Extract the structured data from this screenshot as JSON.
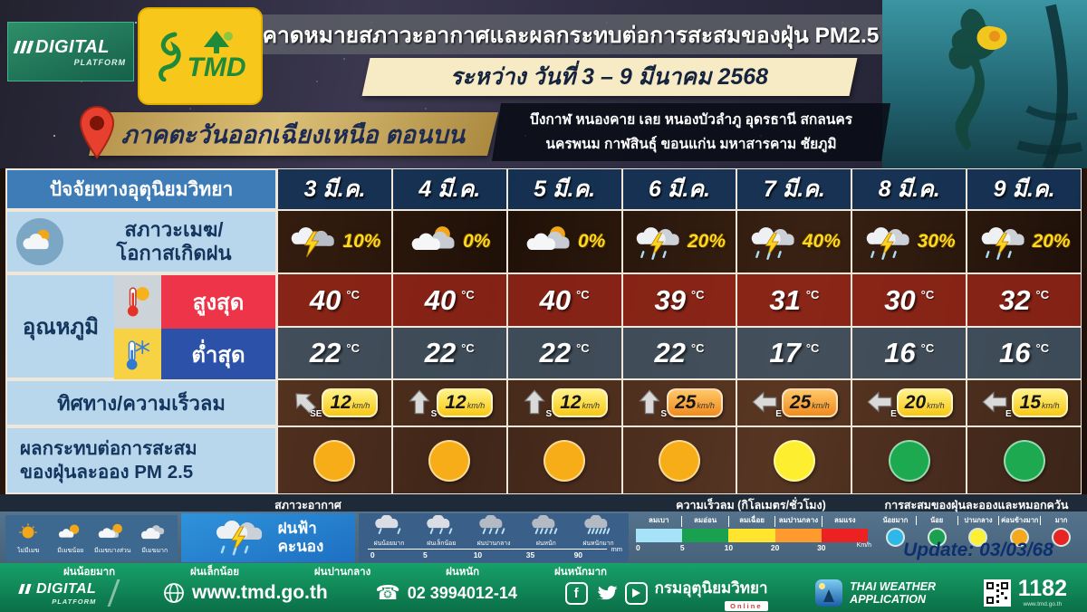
{
  "header": {
    "digital_logo_line1": "DIGITAL",
    "digital_logo_line2": "PLATFORM",
    "tmd_logo_text": "TMD",
    "title": "คาดหมายสภาวะอากาศและผลกระทบต่อการสะสมของฝุ่น PM2.5",
    "date_range": "ระหว่าง วันที่ 3 – 9 มีนาคม 2568"
  },
  "region": {
    "name": "ภาคตะวันออกเฉียงเหนือ ตอนบน",
    "provinces_line1": "บึงกาฬ หนองคาย เลย หนองบัวลำภู อุดรธานี สกลนคร",
    "provinces_line2": "นครพนม กาฬสินธุ์ ขอนแก่น มหาสารคาม  ชัยภูมิ"
  },
  "table": {
    "factor_header": "ปัจจัยทางอุตุนิยมวิทยา",
    "dates": [
      "3 มี.ค.",
      "4 มี.ค.",
      "5 มี.ค.",
      "6 มี.ค.",
      "7 มี.ค.",
      "8 มี.ค.",
      "9 มี.ค."
    ],
    "sky": {
      "label_line1": "สภาวะเมฆ/",
      "label_line2": "โอกาสเกิดฝน",
      "rain_chance": [
        "10%",
        "0%",
        "0%",
        "20%",
        "40%",
        "30%",
        "20%"
      ],
      "icons": [
        "thunder-cloud",
        "sun-cloud",
        "sun-cloud",
        "thunder-rain",
        "thunder-rain",
        "thunder-rain",
        "thunder-rain"
      ]
    },
    "temperature": {
      "group_label": "อุณหภูมิ",
      "max_label": "สูงสุด",
      "min_label": "ต่ำสุด",
      "unit": "°C",
      "max": [
        "40",
        "40",
        "40",
        "39",
        "31",
        "30",
        "32"
      ],
      "min": [
        "22",
        "22",
        "22",
        "22",
        "17",
        "16",
        "16"
      ]
    },
    "wind": {
      "label": "ทิศทาง/ความเร็วลม",
      "unit": "km/h",
      "directions": [
        "SE",
        "S",
        "S",
        "S",
        "E",
        "E",
        "E"
      ],
      "speeds": [
        "12",
        "12",
        "12",
        "25",
        "25",
        "20",
        "15"
      ],
      "badge_colors": [
        "yellow",
        "yellow",
        "yellow",
        "orange",
        "orange",
        "yellow",
        "yellow"
      ]
    },
    "pm": {
      "label_line1": "ผลกระทบต่อการสะสม",
      "label_line2": "ของฝุ่นละออง PM 2.5",
      "levels": [
        "orange",
        "orange",
        "orange",
        "orange",
        "yellow",
        "green",
        "green"
      ]
    }
  },
  "legend_weather": {
    "title": "สภาวะอากาศ",
    "cloud_items": [
      {
        "label": "ไม่มีเมฆ",
        "icon": "clear"
      },
      {
        "label": "มีเมฆน้อย",
        "icon": "few-clouds"
      },
      {
        "label": "มีเมฆบางส่วน",
        "icon": "partly-cloudy"
      },
      {
        "label": "มีเมฆมาก",
        "icon": "cloudy"
      }
    ],
    "thunder_label_line1": "ฝนฟ้า",
    "thunder_label_line2": "คะนอง",
    "rain_items": [
      "ฝนน้อยมาก",
      "ฝนเล็กน้อย",
      "ฝนปานกลาง",
      "ฝนหนัก",
      "ฝนหนักมาก"
    ],
    "rain_scale": [
      "0",
      "5",
      "10",
      "35",
      "90"
    ],
    "rain_unit": "mm"
  },
  "legend_wind": {
    "title": "ความเร็วลม (กิโลเมตร/ชั่วโมง)",
    "items": [
      "ลมเบา",
      "ลมอ่อน",
      "ลมเฉื่อย",
      "ลมปานกลาง",
      "ลมแรง"
    ],
    "colors": [
      "#a6e3f8",
      "#19a14f",
      "#ffe52e",
      "#ff9a2e",
      "#ec2222"
    ],
    "scale": [
      "0",
      "5",
      "10",
      "20",
      "30"
    ],
    "unit": "Km/h"
  },
  "legend_pm": {
    "title": "การสะสมของฝุ่นละอองและหมอกควัน",
    "items": [
      "น้อยมาก",
      "น้อย",
      "ปานกลาง",
      "ค่อนข้างมาก",
      "มาก"
    ],
    "colors": [
      "#2fb7ea",
      "#19a14f",
      "#fdef33",
      "#f5a81e",
      "#e82525"
    ]
  },
  "update_text": "Update: 03/03/68",
  "colors": {
    "pm_levels": {
      "orange": "#f6ad17",
      "yellow": "#fdee2f",
      "green": "#1ca94f"
    }
  },
  "footer": {
    "website": "www.tmd.go.th",
    "phone": "02 3994012-14",
    "department": "กรมอุตุนิยมวิทยา",
    "department_badge": "Online",
    "app_line1": "THAI WEATHER",
    "app_line2": "APPLICATION",
    "hotline": "1182",
    "hotline_sub": "www.tmd.go.th",
    "digital_line1": "DIGITAL",
    "digital_line2": "PLATFORM"
  },
  "chart_data": {
    "type": "table",
    "title": "คาดหมายสภาวะอากาศและผลกระทบต่อการสะสมของฝุ่น PM2.5",
    "subtitle": "ระหว่าง วันที่ 3 – 9 มีนาคม 2568",
    "region": "ภาคตะวันออกเฉียงเหนือ ตอนบน",
    "columns": [
      "3 มี.ค.",
      "4 มี.ค.",
      "5 มี.ค.",
      "6 มี.ค.",
      "7 มี.ค.",
      "8 มี.ค.",
      "9 มี.ค."
    ],
    "rows": [
      {
        "label": "โอกาสเกิดฝน (%)",
        "values": [
          10,
          0,
          0,
          20,
          40,
          30,
          20
        ]
      },
      {
        "label": "อุณหภูมิสูงสุด (°C)",
        "values": [
          40,
          40,
          40,
          39,
          31,
          30,
          32
        ]
      },
      {
        "label": "อุณหภูมิต่ำสุด (°C)",
        "values": [
          22,
          22,
          22,
          22,
          17,
          16,
          16
        ]
      },
      {
        "label": "ทิศทางลม",
        "values": [
          "SE",
          "S",
          "S",
          "S",
          "E",
          "E",
          "E"
        ]
      },
      {
        "label": "ความเร็วลม (km/h)",
        "values": [
          12,
          12,
          12,
          25,
          25,
          20,
          15
        ]
      },
      {
        "label": "ผลกระทบต่อการสะสมของฝุ่นละออง PM 2.5",
        "values": [
          "ค่อนข้างมาก",
          "ค่อนข้างมาก",
          "ค่อนข้างมาก",
          "ค่อนข้างมาก",
          "ปานกลาง",
          "น้อย",
          "น้อย"
        ]
      }
    ]
  }
}
